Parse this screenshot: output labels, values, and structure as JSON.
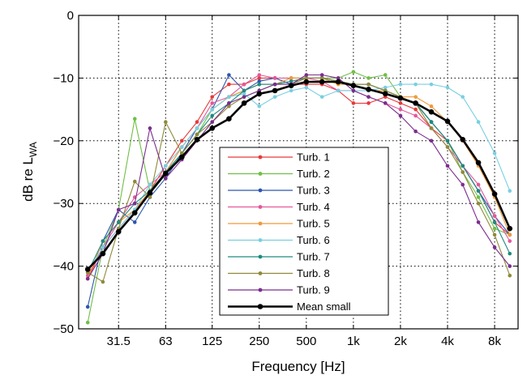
{
  "chart_data": {
    "type": "line",
    "xlabel": "Frequency [Hz]",
    "ylabel_main": "dB re L",
    "ylabel_sub": "WA",
    "ylim": [
      -50,
      0
    ],
    "y_ticks": [
      0,
      -10,
      -20,
      -30,
      -40,
      -50
    ],
    "y_tick_labels": [
      "0",
      "−10",
      "−20",
      "−30",
      "−40",
      "−50"
    ],
    "x_scale": "log2",
    "xlim": [
      17.5,
      11300
    ],
    "x_ticks": [
      31.5,
      63,
      125,
      250,
      500,
      1000,
      2000,
      4000,
      8000
    ],
    "x_tick_labels": [
      "31.5",
      "63",
      "125",
      "250",
      "500",
      "1k",
      "2k",
      "4k",
      "8k"
    ],
    "grid": "dotted",
    "legend_position": "lower-center",
    "x": [
      20,
      25,
      31.5,
      40,
      50,
      63,
      80,
      100,
      125,
      160,
      200,
      250,
      315,
      400,
      500,
      630,
      800,
      1000,
      1250,
      1600,
      2000,
      2500,
      3150,
      4000,
      5000,
      6300,
      8000,
      10000
    ],
    "series": [
      {
        "name": "Turb. 1",
        "color": "#e8393a",
        "values": [
          -42,
          -37,
          -34,
          -31,
          -28,
          -24,
          -20,
          -17,
          -13,
          -11,
          -11,
          -10,
          -10,
          -11,
          -11,
          -11,
          -12,
          -14,
          -14,
          -13,
          -14,
          -15,
          -18,
          -20,
          -24,
          -28,
          -33,
          -35
        ]
      },
      {
        "name": "Turb. 2",
        "color": "#6fbf45",
        "values": [
          -49,
          -37,
          -31,
          -16.5,
          -28,
          -25,
          -22,
          -19,
          -15,
          -13,
          -12,
          -11,
          -11,
          -10,
          -10,
          -10,
          -10,
          -9,
          -10,
          -9.5,
          -13,
          -14,
          -17,
          -20,
          -25,
          -29,
          -34,
          -35
        ]
      },
      {
        "name": "Turb. 3",
        "color": "#2e56b0",
        "values": [
          -46.5,
          -36,
          -31,
          -33,
          -29,
          -26,
          -22,
          -18,
          -15,
          -9.5,
          -12,
          -10.5,
          -10,
          -11,
          -10,
          -10,
          -10.5,
          -11,
          -11,
          -12,
          -13,
          -14,
          -17,
          -20,
          -24,
          -28,
          -32,
          -35
        ]
      },
      {
        "name": "Turb. 4",
        "color": "#e3589a",
        "values": [
          -41.5,
          -37,
          -33,
          -29,
          -27,
          -25,
          -21,
          -18,
          -14,
          -13,
          -11,
          -9.5,
          -10,
          -10,
          -10,
          -10.5,
          -12,
          -12,
          -13,
          -14,
          -15,
          -16,
          -18,
          -21,
          -24,
          -27,
          -32,
          -36
        ]
      },
      {
        "name": "Turb. 5",
        "color": "#f09a3a",
        "values": [
          -42,
          -36,
          -33,
          -31,
          -28,
          -25,
          -21,
          -18,
          -15,
          -13,
          -12,
          -11,
          -11,
          -10,
          -10,
          -10,
          -11,
          -11,
          -12,
          -12,
          -13,
          -13,
          -14.5,
          -17,
          -20,
          -24,
          -29,
          -35
        ]
      },
      {
        "name": "Turb. 6",
        "color": "#79cfe0",
        "values": [
          -41,
          -37,
          -34,
          -31,
          -27,
          -24,
          -21,
          -18,
          -15,
          -13,
          -12.5,
          -14.5,
          -13,
          -12,
          -11.5,
          -13,
          -12,
          -12,
          -12,
          -11.5,
          -11,
          -11,
          -11,
          -11.5,
          -13,
          -17,
          -22,
          -28
        ]
      },
      {
        "name": "Turb. 7",
        "color": "#1f8a80",
        "values": [
          -41,
          -36,
          -33,
          -30,
          -28,
          -25,
          -22,
          -19,
          -16,
          -14,
          -12,
          -11,
          -11,
          -10.5,
          -10,
          -10,
          -10.5,
          -11,
          -11,
          -12,
          -13,
          -14,
          -17,
          -20,
          -24,
          -28,
          -33,
          -38
        ]
      },
      {
        "name": "Turb. 8",
        "color": "#8e8a3a",
        "values": [
          -41,
          -42.5,
          -34,
          -26.5,
          -29,
          -17,
          -22,
          -19,
          -17,
          -14.5,
          -13,
          -12,
          -11,
          -11,
          -10,
          -10,
          -10.5,
          -11,
          -11,
          -12,
          -13,
          -14,
          -18,
          -21,
          -25,
          -30,
          -35,
          -41.5
        ]
      },
      {
        "name": "Turb. 9",
        "color": "#7b2d8e",
        "values": [
          -42,
          -38,
          -31,
          -30,
          -18,
          -26,
          -23,
          -20,
          -17,
          -14,
          -13,
          -12,
          -11,
          -11,
          -9.5,
          -9.5,
          -10,
          -12,
          -13,
          -14,
          -16,
          -18.5,
          -20,
          -24,
          -27,
          -33,
          -37,
          -40
        ]
      },
      {
        "name": "Mean small",
        "color": "#000000",
        "values": [
          -40.5,
          -38,
          -34.5,
          -31.5,
          -28.3,
          -25.2,
          -22.6,
          -19.8,
          -18,
          -16.5,
          -14,
          -12.5,
          -12,
          -11.2,
          -10.6,
          -10.6,
          -10.6,
          -11.2,
          -11.8,
          -12.5,
          -13.2,
          -14,
          -15.4,
          -16.9,
          -19.8,
          -23.5,
          -28.5,
          -34
        ]
      }
    ]
  }
}
